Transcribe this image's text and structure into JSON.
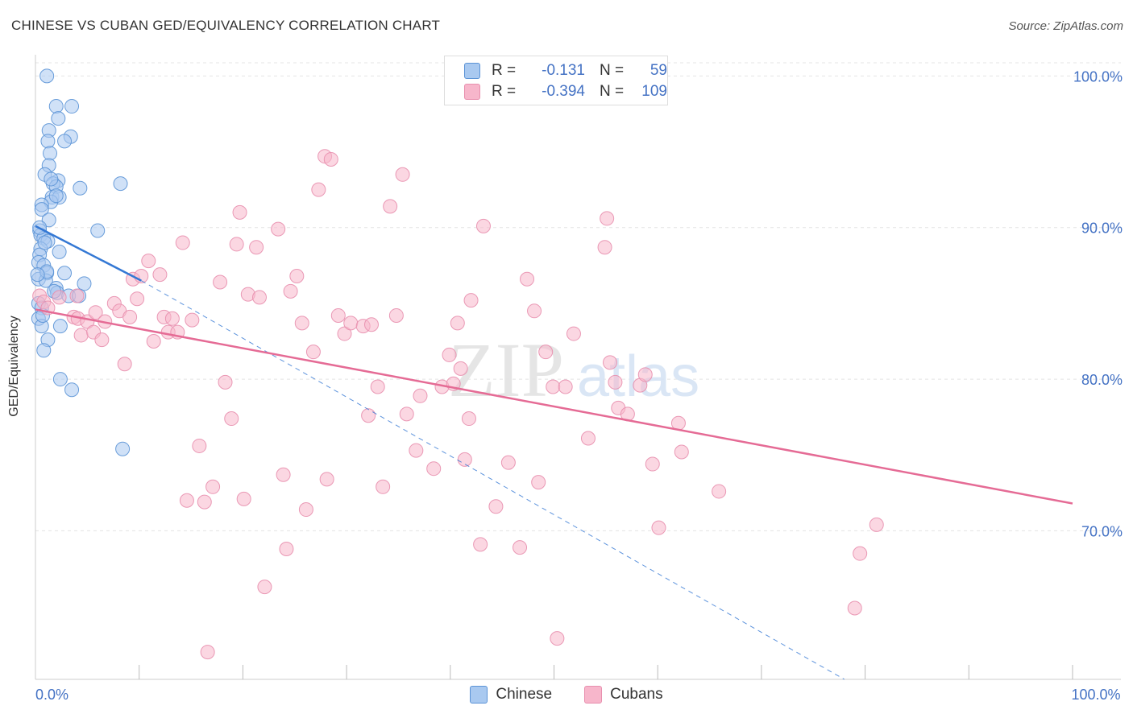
{
  "header": {
    "title": "CHINESE VS CUBAN GED/EQUIVALENCY CORRELATION CHART",
    "source": "Source: ZipAtlas.com"
  },
  "legend": {
    "rows": [
      {
        "r_label": "R =",
        "r_value": "-0.131",
        "n_label": "N =",
        "n_value": "59",
        "color": "#a9c9f0"
      },
      {
        "r_label": "R =",
        "r_value": "-0.394",
        "n_label": "N =",
        "n_value": "109",
        "color": "#f7b6cb"
      }
    ]
  },
  "bottom_legend": [
    {
      "label": "Chinese",
      "color": "#a9c9f0"
    },
    {
      "label": "Cubans",
      "color": "#f7b6cb"
    }
  ],
  "colors": {
    "chinese_fill": "#a9c9f0",
    "chinese_stroke": "#5b93d6",
    "chinese_line": "#3478d4",
    "cuban_fill": "#f7b6cb",
    "cuban_stroke": "#e88fae",
    "cuban_line": "#e56b95",
    "tick_label": "#4472c4",
    "grid": "#e4e4e4"
  },
  "chart_data": {
    "type": "scatter",
    "title": "CHINESE VS CUBAN GED/EQUIVALENCY CORRELATION CHART",
    "xlabel": "",
    "ylabel": "GED/Equivalency",
    "xlim": [
      0,
      100
    ],
    "ylim": [
      60.2,
      101.4
    ],
    "x_tick_labels": [
      {
        "x": 0,
        "label": "0.0%"
      },
      {
        "x": 100,
        "label": "100.0%"
      }
    ],
    "y_ticks": [
      {
        "y": 100,
        "label": "100.0%"
      },
      {
        "y": 90,
        "label": "90.0%"
      },
      {
        "y": 80,
        "label": "80.0%"
      },
      {
        "y": 70,
        "label": "70.0%"
      }
    ],
    "grid": true,
    "legend_position": "top-center",
    "watermark": "ZIPatlas",
    "series": [
      {
        "name": "Chinese",
        "r": -0.131,
        "n": 59,
        "trend": {
          "x0": 0,
          "y0": 90.1,
          "x1": 10.2,
          "y1": 86.5,
          "dash_x1": 78,
          "dash_y1": 60.2
        },
        "points": [
          [
            1.1,
            100.0
          ],
          [
            2.0,
            98.0
          ],
          [
            3.5,
            98.0
          ],
          [
            2.2,
            97.2
          ],
          [
            1.3,
            96.4
          ],
          [
            3.4,
            96.0
          ],
          [
            1.2,
            95.7
          ],
          [
            2.8,
            95.7
          ],
          [
            1.4,
            94.9
          ],
          [
            1.3,
            94.1
          ],
          [
            0.9,
            93.5
          ],
          [
            2.2,
            93.1
          ],
          [
            8.2,
            92.9
          ],
          [
            1.7,
            92.9
          ],
          [
            2.0,
            92.7
          ],
          [
            4.3,
            92.6
          ],
          [
            1.6,
            92.0
          ],
          [
            2.3,
            92.0
          ],
          [
            1.5,
            91.7
          ],
          [
            0.6,
            91.5
          ],
          [
            0.6,
            91.2
          ],
          [
            1.3,
            90.5
          ],
          [
            6.0,
            89.8
          ],
          [
            0.4,
            89.8
          ],
          [
            0.5,
            89.5
          ],
          [
            0.8,
            89.3
          ],
          [
            1.2,
            89.1
          ],
          [
            0.5,
            88.6
          ],
          [
            0.4,
            88.2
          ],
          [
            2.3,
            88.4
          ],
          [
            0.3,
            87.7
          ],
          [
            0.8,
            87.5
          ],
          [
            1.1,
            87.0
          ],
          [
            2.8,
            87.0
          ],
          [
            0.3,
            86.6
          ],
          [
            1.0,
            86.5
          ],
          [
            4.7,
            86.3
          ],
          [
            2.0,
            86.0
          ],
          [
            2.1,
            85.7
          ],
          [
            3.2,
            85.5
          ],
          [
            4.2,
            85.5
          ],
          [
            0.3,
            85.0
          ],
          [
            0.6,
            84.7
          ],
          [
            0.3,
            84.0
          ],
          [
            0.6,
            83.5
          ],
          [
            2.4,
            83.5
          ],
          [
            1.2,
            82.6
          ],
          [
            0.8,
            81.9
          ],
          [
            2.4,
            80.0
          ],
          [
            3.5,
            79.3
          ],
          [
            8.4,
            75.4
          ],
          [
            2.0,
            92.1
          ],
          [
            1.1,
            87.1
          ],
          [
            0.7,
            84.2
          ],
          [
            1.8,
            85.8
          ],
          [
            0.2,
            86.9
          ],
          [
            0.9,
            89.0
          ],
          [
            1.5,
            93.2
          ],
          [
            0.4,
            90.0
          ]
        ]
      },
      {
        "name": "Cubans",
        "r": -0.394,
        "n": 109,
        "trend": {
          "x0": 0,
          "y0": 84.6,
          "x1": 100,
          "y1": 71.8
        },
        "points": [
          [
            0.4,
            85.5
          ],
          [
            0.8,
            85.1
          ],
          [
            1.2,
            84.7
          ],
          [
            2.3,
            85.4
          ],
          [
            3.7,
            84.1
          ],
          [
            4.0,
            85.5
          ],
          [
            4.1,
            84.0
          ],
          [
            4.4,
            82.9
          ],
          [
            5.0,
            83.8
          ],
          [
            5.6,
            83.1
          ],
          [
            5.8,
            84.4
          ],
          [
            6.4,
            82.6
          ],
          [
            6.7,
            83.8
          ],
          [
            7.6,
            85.0
          ],
          [
            8.1,
            84.5
          ],
          [
            8.6,
            81.0
          ],
          [
            9.1,
            84.1
          ],
          [
            9.4,
            86.6
          ],
          [
            9.8,
            85.3
          ],
          [
            10.2,
            86.8
          ],
          [
            10.9,
            87.8
          ],
          [
            11.4,
            82.5
          ],
          [
            12.0,
            86.9
          ],
          [
            12.4,
            84.1
          ],
          [
            12.8,
            83.1
          ],
          [
            13.2,
            84.0
          ],
          [
            13.7,
            83.1
          ],
          [
            14.2,
            89.0
          ],
          [
            14.6,
            72.0
          ],
          [
            15.1,
            83.9
          ],
          [
            15.8,
            75.6
          ],
          [
            16.3,
            71.9
          ],
          [
            16.6,
            62.0
          ],
          [
            17.1,
            72.9
          ],
          [
            17.8,
            86.4
          ],
          [
            18.3,
            79.8
          ],
          [
            18.9,
            77.4
          ],
          [
            19.4,
            88.9
          ],
          [
            19.7,
            91.0
          ],
          [
            20.1,
            72.1
          ],
          [
            20.5,
            85.6
          ],
          [
            21.3,
            88.7
          ],
          [
            21.6,
            85.4
          ],
          [
            22.1,
            66.3
          ],
          [
            23.4,
            89.9
          ],
          [
            23.9,
            73.7
          ],
          [
            24.2,
            68.8
          ],
          [
            24.6,
            85.8
          ],
          [
            25.2,
            86.8
          ],
          [
            25.7,
            83.7
          ],
          [
            26.1,
            71.4
          ],
          [
            26.8,
            81.8
          ],
          [
            27.3,
            92.5
          ],
          [
            27.9,
            94.7
          ],
          [
            28.1,
            73.4
          ],
          [
            28.5,
            94.5
          ],
          [
            29.2,
            84.2
          ],
          [
            29.8,
            83.0
          ],
          [
            30.4,
            83.7
          ],
          [
            31.6,
            83.5
          ],
          [
            32.1,
            77.6
          ],
          [
            32.4,
            83.6
          ],
          [
            33.0,
            79.5
          ],
          [
            33.5,
            72.9
          ],
          [
            34.2,
            91.4
          ],
          [
            34.8,
            84.2
          ],
          [
            35.4,
            93.5
          ],
          [
            35.8,
            77.7
          ],
          [
            36.7,
            75.3
          ],
          [
            37.1,
            78.9
          ],
          [
            38.4,
            74.1
          ],
          [
            39.2,
            79.5
          ],
          [
            39.9,
            81.6
          ],
          [
            40.3,
            79.7
          ],
          [
            40.7,
            83.7
          ],
          [
            41.0,
            80.7
          ],
          [
            41.4,
            74.7
          ],
          [
            41.8,
            77.4
          ],
          [
            42.9,
            69.1
          ],
          [
            43.2,
            90.1
          ],
          [
            44.4,
            71.6
          ],
          [
            45.6,
            74.5
          ],
          [
            46.7,
            68.9
          ],
          [
            47.4,
            86.6
          ],
          [
            48.1,
            84.5
          ],
          [
            48.5,
            73.2
          ],
          [
            49.2,
            81.8
          ],
          [
            49.9,
            79.5
          ],
          [
            50.3,
            62.9
          ],
          [
            51.1,
            79.5
          ],
          [
            51.9,
            83.0
          ],
          [
            53.3,
            76.1
          ],
          [
            54.9,
            88.7
          ],
          [
            55.1,
            90.6
          ],
          [
            55.4,
            81.1
          ],
          [
            55.9,
            79.8
          ],
          [
            56.2,
            78.1
          ],
          [
            57.1,
            77.7
          ],
          [
            58.3,
            79.6
          ],
          [
            58.8,
            80.3
          ],
          [
            59.5,
            74.4
          ],
          [
            60.1,
            70.2
          ],
          [
            62.0,
            77.1
          ],
          [
            62.3,
            75.2
          ],
          [
            65.9,
            72.6
          ],
          [
            79.0,
            64.9
          ],
          [
            79.5,
            68.5
          ],
          [
            81.1,
            70.4
          ],
          [
            42.0,
            85.2
          ]
        ]
      }
    ]
  }
}
